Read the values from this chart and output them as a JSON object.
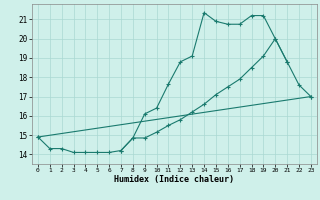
{
  "title": "",
  "xlabel": "Humidex (Indice chaleur)",
  "bg_color": "#cff0ea",
  "grid_color": "#aad8d2",
  "line_color": "#1a7a6e",
  "x_values": [
    0,
    1,
    2,
    3,
    4,
    5,
    6,
    7,
    8,
    9,
    10,
    11,
    12,
    13,
    14,
    15,
    16,
    17,
    18,
    19,
    20,
    21,
    22,
    23
  ],
  "line1_y": [
    14.9,
    14.3,
    14.3,
    14.1,
    14.1,
    14.1,
    14.1,
    14.2,
    14.85,
    16.1,
    16.4,
    17.65,
    18.8,
    19.1,
    21.35,
    20.9,
    20.75,
    20.75,
    21.2,
    21.2,
    20.0,
    18.8,
    null,
    null
  ],
  "line2_y": [
    14.9,
    null,
    null,
    null,
    null,
    null,
    null,
    null,
    null,
    null,
    null,
    null,
    null,
    null,
    null,
    null,
    null,
    null,
    null,
    null,
    null,
    null,
    null,
    17.0
  ],
  "line3_y": [
    null,
    null,
    null,
    null,
    null,
    null,
    null,
    14.2,
    14.85,
    14.85,
    15.15,
    15.5,
    15.8,
    16.2,
    16.6,
    17.1,
    17.5,
    17.9,
    18.5,
    19.1,
    20.0,
    18.8,
    17.6,
    17.0
  ],
  "ylim": [
    13.5,
    21.8
  ],
  "xlim": [
    -0.5,
    23.5
  ],
  "yticks": [
    14,
    15,
    16,
    17,
    18,
    19,
    20,
    21
  ],
  "xticks": [
    0,
    1,
    2,
    3,
    4,
    5,
    6,
    7,
    8,
    9,
    10,
    11,
    12,
    13,
    14,
    15,
    16,
    17,
    18,
    19,
    20,
    21,
    22,
    23
  ]
}
